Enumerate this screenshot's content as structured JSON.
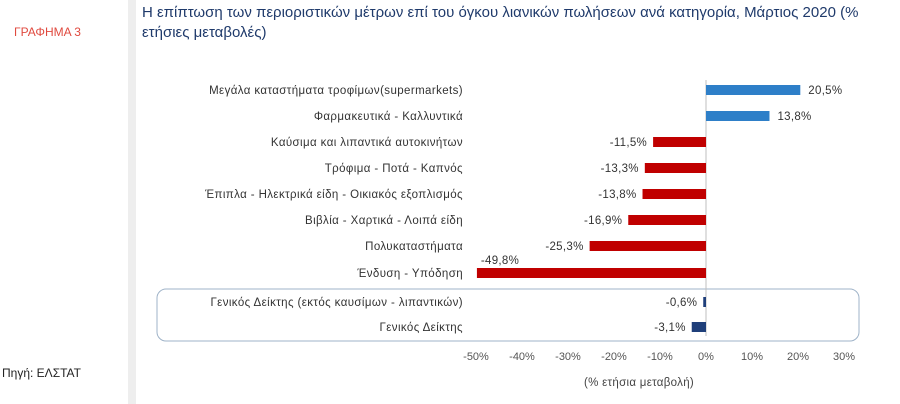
{
  "sidebar": {
    "chart_label": "ΓΡΑΦΗΜΑ 3",
    "source": "Πηγή: ΕΛΣΤΑΤ"
  },
  "chart_data": {
    "type": "bar",
    "orientation": "horizontal",
    "title": "Η επίπτωση των περιοριστικών μέτρων επί του όγκου λιανικών πωλήσεων ανά κατηγορία, Μάρτιος 2020 (% ετήσιες μεταβολές)",
    "xlabel": "(% ετήσια μεταβολή)",
    "ylabel": "",
    "xlim": [
      -50,
      30
    ],
    "ticks": [
      -50,
      -40,
      -30,
      -20,
      -10,
      0,
      10,
      20,
      30
    ],
    "tick_labels": [
      "-50%",
      "-40%",
      "-30%",
      "-20%",
      "-10%",
      "0%",
      "10%",
      "20%",
      "30%"
    ],
    "categories": [
      "Μεγάλα καταστήματα τροφίμων(supermarkets)",
      "Φαρμακευτικά - Καλλυντικά",
      "Καύσιμα και λιπαντικά αυτοκινήτων",
      "Τρόφιμα - Ποτά - Καπνός",
      "Έπιπλα - Ηλεκτρικά είδη - Οικιακός εξοπλισμός",
      "Βιβλία - Χαρτικά - Λοιπά είδη",
      "Πολυκαταστήματα",
      "Ένδυση - Υπόδηση",
      "Γενικός Δείκτης (εκτός καυσίμων - λιπαντικών)",
      "Γενικός Δείκτης"
    ],
    "values": [
      20.5,
      13.8,
      -11.5,
      -13.3,
      -13.8,
      -16.9,
      -25.3,
      -49.8,
      -0.6,
      -3.1
    ],
    "value_labels": [
      "20,5%",
      "13,8%",
      "-11,5%",
      "-13,3%",
      "-13,8%",
      "-16,9%",
      "-25,3%",
      "-49,8%",
      "-0,6%",
      "-3,1%"
    ],
    "grouped_in_box": [
      8,
      9
    ],
    "colors": {
      "positive": "#2e7fc8",
      "negative": "#c00000",
      "general_index": "#1f3f7a"
    }
  }
}
